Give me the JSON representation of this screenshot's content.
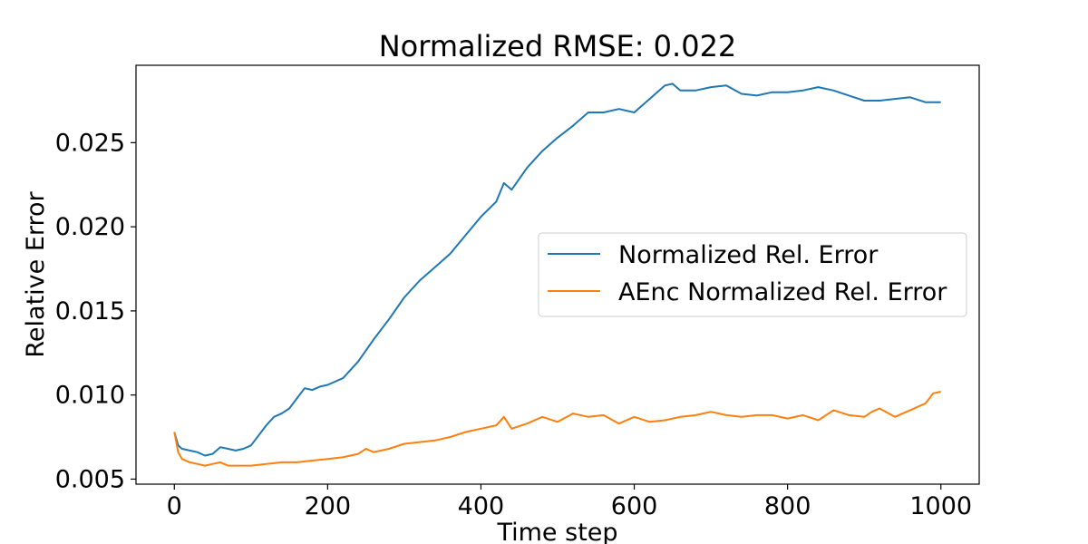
{
  "chart_data": {
    "type": "line",
    "title": "Normalized RMSE: 0.022",
    "xlabel": "Time step",
    "ylabel": "Relative Error",
    "xlim": [
      -50,
      1050
    ],
    "ylim": [
      0.0047,
      0.0296
    ],
    "xticks": [
      0,
      200,
      400,
      600,
      800,
      1000
    ],
    "xtick_labels": [
      "0",
      "200",
      "400",
      "600",
      "800",
      "1000"
    ],
    "yticks": [
      0.005,
      0.01,
      0.015,
      0.02,
      0.025
    ],
    "ytick_labels": [
      "0.005",
      "0.010",
      "0.015",
      "0.020",
      "0.025"
    ],
    "grid": false,
    "legend_position": "center-right",
    "series": [
      {
        "name": "Normalized Rel. Error",
        "color": "#1f77b4",
        "x": [
          0,
          5,
          10,
          20,
          30,
          40,
          50,
          60,
          70,
          80,
          90,
          100,
          110,
          120,
          130,
          140,
          150,
          160,
          170,
          180,
          190,
          200,
          220,
          240,
          260,
          280,
          300,
          320,
          340,
          360,
          380,
          400,
          420,
          430,
          440,
          460,
          480,
          500,
          520,
          540,
          560,
          580,
          600,
          620,
          640,
          650,
          660,
          680,
          700,
          720,
          740,
          760,
          780,
          800,
          820,
          840,
          860,
          880,
          900,
          920,
          940,
          960,
          980,
          1000
        ],
        "y": [
          0.0078,
          0.007,
          0.0068,
          0.0067,
          0.0066,
          0.0064,
          0.0065,
          0.0069,
          0.0068,
          0.0067,
          0.0068,
          0.007,
          0.0076,
          0.0082,
          0.0087,
          0.0089,
          0.0092,
          0.0098,
          0.0104,
          0.0103,
          0.0105,
          0.0106,
          0.011,
          0.012,
          0.0133,
          0.0145,
          0.0158,
          0.0168,
          0.0176,
          0.0184,
          0.0195,
          0.0206,
          0.0215,
          0.0226,
          0.0222,
          0.0235,
          0.0245,
          0.0253,
          0.026,
          0.0268,
          0.0268,
          0.027,
          0.0268,
          0.0276,
          0.0284,
          0.0285,
          0.0281,
          0.0281,
          0.0283,
          0.0284,
          0.0279,
          0.0278,
          0.028,
          0.028,
          0.0281,
          0.0283,
          0.0281,
          0.0278,
          0.0275,
          0.0275,
          0.0276,
          0.0277,
          0.0274,
          0.0274
        ]
      },
      {
        "name": "AEnc Normalized Rel. Error",
        "color": "#ff7f0e",
        "x": [
          0,
          5,
          10,
          20,
          30,
          40,
          50,
          60,
          70,
          80,
          90,
          100,
          120,
          140,
          160,
          180,
          200,
          220,
          240,
          250,
          260,
          280,
          300,
          320,
          340,
          360,
          380,
          400,
          420,
          430,
          440,
          460,
          480,
          500,
          520,
          540,
          560,
          580,
          600,
          620,
          640,
          660,
          680,
          700,
          720,
          740,
          760,
          780,
          800,
          820,
          840,
          860,
          880,
          900,
          910,
          920,
          940,
          960,
          980,
          990,
          1000
        ],
        "y": [
          0.0078,
          0.0066,
          0.0062,
          0.006,
          0.0059,
          0.0058,
          0.0059,
          0.006,
          0.0058,
          0.0058,
          0.0058,
          0.0058,
          0.0059,
          0.006,
          0.006,
          0.0061,
          0.0062,
          0.0063,
          0.0065,
          0.0068,
          0.0066,
          0.0068,
          0.0071,
          0.0072,
          0.0073,
          0.0075,
          0.0078,
          0.008,
          0.0082,
          0.0087,
          0.008,
          0.0083,
          0.0087,
          0.0084,
          0.0089,
          0.0087,
          0.0088,
          0.0083,
          0.0087,
          0.0084,
          0.0085,
          0.0087,
          0.0088,
          0.009,
          0.0088,
          0.0087,
          0.0088,
          0.0088,
          0.0086,
          0.0088,
          0.0085,
          0.0091,
          0.0088,
          0.0087,
          0.009,
          0.0092,
          0.0087,
          0.0091,
          0.0095,
          0.0101,
          0.0102
        ]
      }
    ]
  }
}
